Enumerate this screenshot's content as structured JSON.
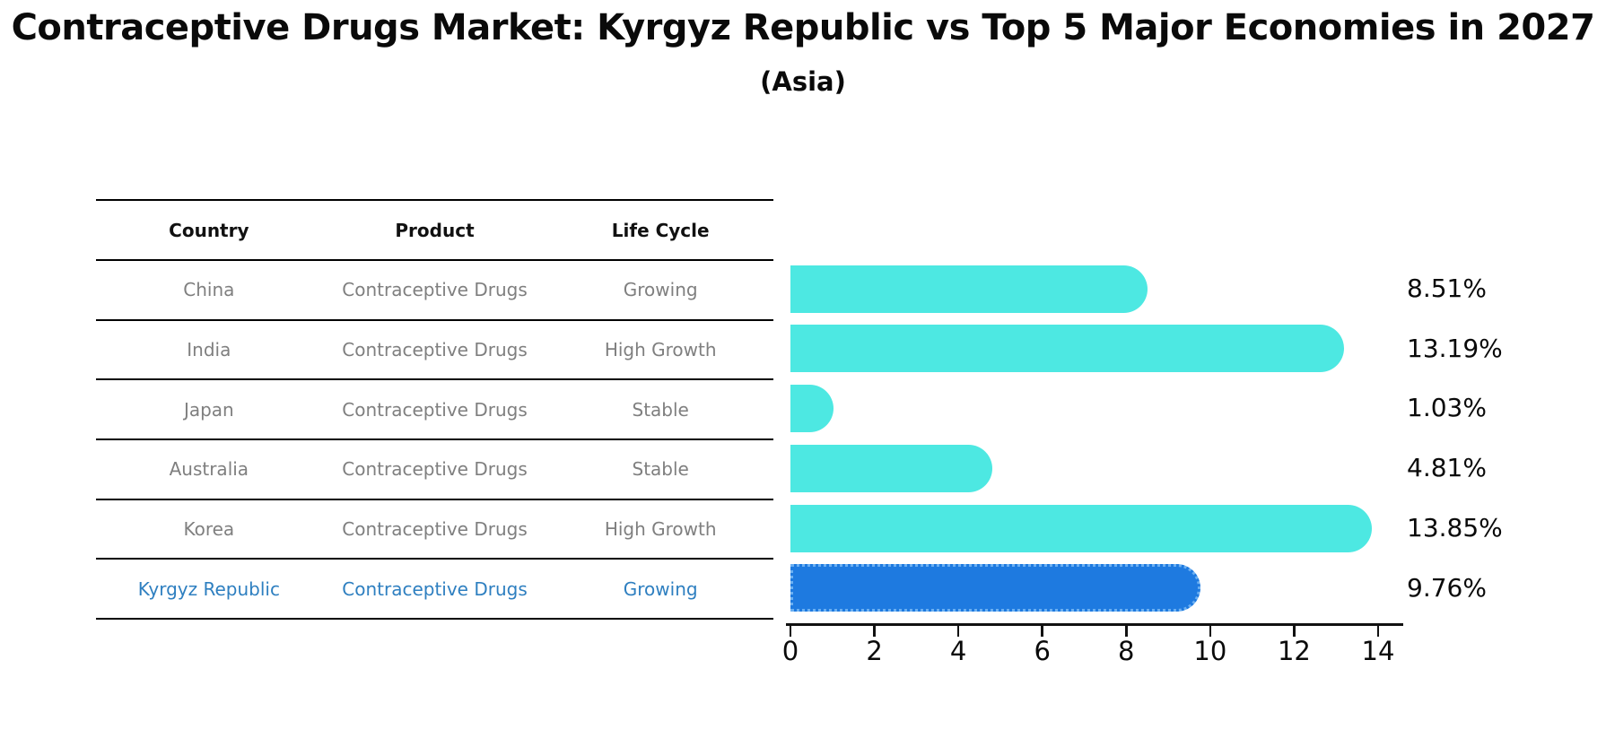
{
  "header": {
    "title": "Contraceptive Drugs Market: Kyrgyz Republic vs Top 5 Major Economies in 2027",
    "subtitle": "(Asia)"
  },
  "table": {
    "columns": [
      "Country",
      "Product",
      "Life Cycle"
    ],
    "rows": [
      {
        "country": "China",
        "product": "Contraceptive Drugs",
        "life_cycle": "Growing",
        "highlighted": false
      },
      {
        "country": "India",
        "product": "Contraceptive Drugs",
        "life_cycle": "High Growth",
        "highlighted": false
      },
      {
        "country": "Japan",
        "product": "Contraceptive Drugs",
        "life_cycle": "Stable",
        "highlighted": false
      },
      {
        "country": "Australia",
        "product": "Contraceptive Drugs",
        "life_cycle": "Stable",
        "highlighted": false
      },
      {
        "country": "Korea",
        "product": "Contraceptive Drugs",
        "life_cycle": "High Growth",
        "highlighted": false
      },
      {
        "country": "Kyrgyz Republic",
        "product": "Contraceptive Drugs",
        "life_cycle": "Growing",
        "highlighted": true
      }
    ]
  },
  "chart_data": {
    "type": "bar",
    "orientation": "horizontal",
    "title": "Contraceptive Drugs Market: Kyrgyz Republic vs Top 5 Major Economies in 2027 (Asia)",
    "categories": [
      "China",
      "India",
      "Japan",
      "Australia",
      "Korea",
      "Kyrgyz Republic"
    ],
    "values": [
      8.51,
      13.19,
      1.03,
      4.81,
      13.85,
      9.76
    ],
    "value_labels": [
      "8.51%",
      "13.19%",
      "1.03%",
      "4.81%",
      "13.85%",
      "9.76%"
    ],
    "xlim": [
      0,
      14.62
    ],
    "x_ticks": [
      0,
      2,
      4,
      6,
      8,
      10,
      12,
      14
    ],
    "grid": false,
    "legend_position": "none",
    "highlight_index": 5
  },
  "colors": {
    "bar": "#4de8e2",
    "highlight_bar": "#1e7ae0",
    "highlight_edge": "#6cb0f2",
    "highlight_text": "#2e7fc0",
    "table_text": "#7f7f7f",
    "heading_text": "#111111",
    "axis": "#111111"
  }
}
